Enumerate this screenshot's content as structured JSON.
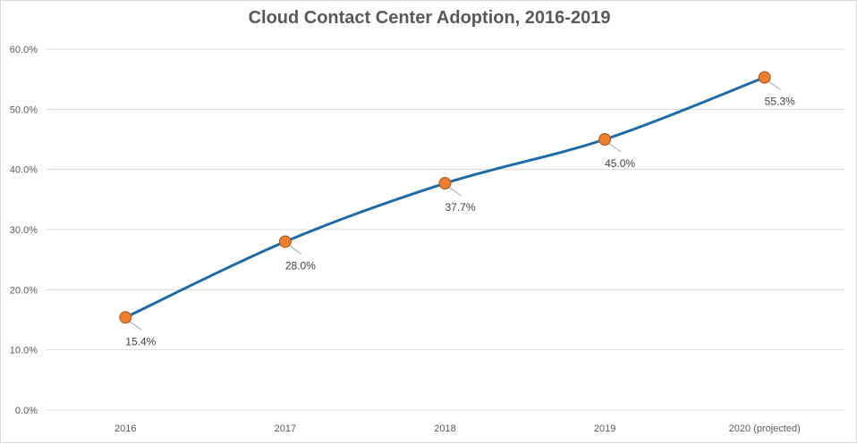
{
  "chart_data": {
    "type": "line",
    "title": "Cloud Contact Center Adoption, 2016-2019",
    "categories": [
      "2016",
      "2017",
      "2018",
      "2019",
      "2020 (projected)"
    ],
    "series": [
      {
        "values": [
          15.4,
          28.0,
          37.7,
          45.0,
          55.3
        ],
        "data_labels": [
          "15.4%",
          "28.0%",
          "37.7%",
          "45.0%",
          "55.3%"
        ]
      }
    ],
    "ylim": [
      0,
      60
    ],
    "yticks": [
      "0.0%",
      "10.0%",
      "20.0%",
      "30.0%",
      "40.0%",
      "50.0%",
      "60.0%"
    ],
    "xlabel": "",
    "ylabel": "",
    "grid": true,
    "legend": "none",
    "colors": {
      "line": "#1f6aa5",
      "marker_fill": "#ed7d31",
      "marker_stroke": "#9e5a1e",
      "grid": "#d9d9d9",
      "text": "#595959"
    }
  }
}
